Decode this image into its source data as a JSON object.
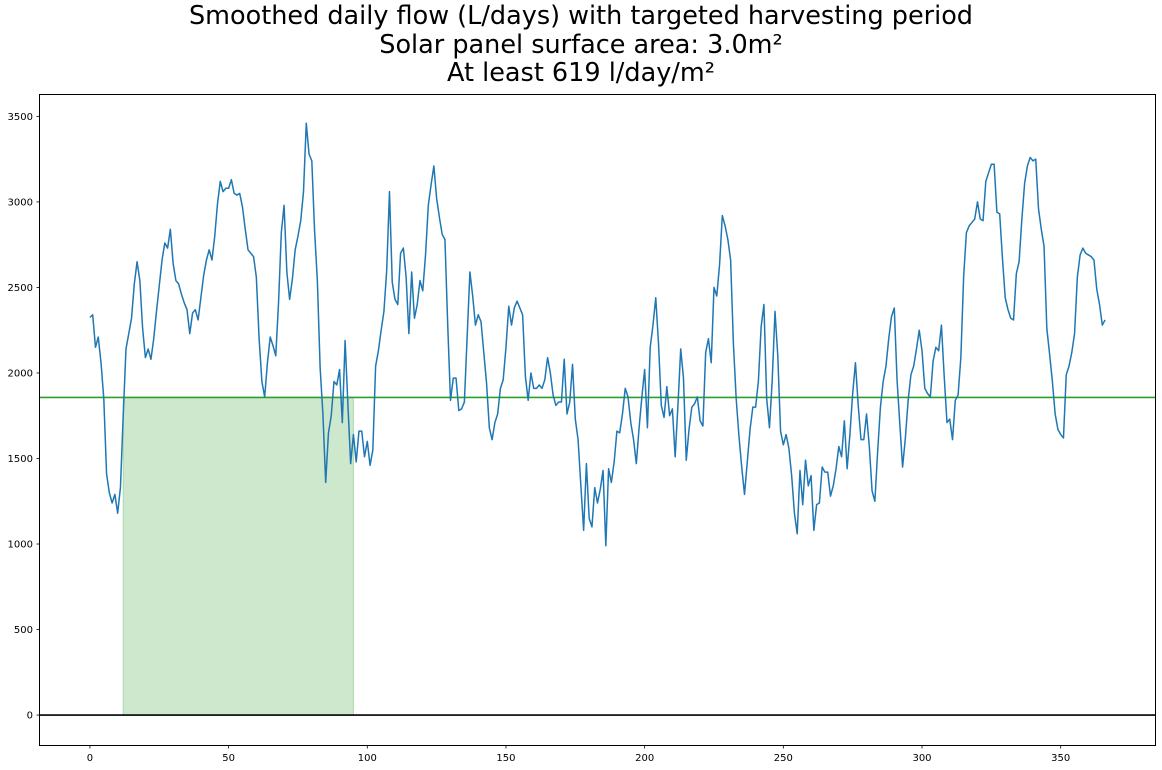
{
  "chart_data": {
    "type": "line",
    "title": [
      "Smoothed daily flow (L/days) with targeted harvesting period",
      "Solar panel surface area: 3.0m²",
      "At least 619 l/day/m²"
    ],
    "xlabel": "",
    "ylabel": "",
    "xlim": [
      -18,
      384
    ],
    "ylim": [
      -175,
      3625
    ],
    "xticks": [
      0,
      50,
      100,
      150,
      200,
      250,
      300,
      350
    ],
    "yticks": [
      0,
      500,
      1000,
      1500,
      2000,
      2500,
      3000,
      3500
    ],
    "grid": false,
    "threshold": 1857,
    "zero_line": 0,
    "harvest_period": [
      12,
      95
    ],
    "colors": {
      "line": "#1f77b4",
      "threshold": "#2ca02c",
      "zero": "#000000",
      "fill": "#2ca02c"
    },
    "series": [
      {
        "x_start": 0,
        "values": [
          2325,
          2340,
          2150,
          2210,
          2060,
          1850,
          1410,
          1300,
          1240,
          1290,
          1180,
          1330,
          1750,
          2140,
          2230,
          2320,
          2520,
          2650,
          2540,
          2260,
          2090,
          2140,
          2080,
          2200,
          2360,
          2510,
          2660,
          2760,
          2730,
          2840,
          2640,
          2540,
          2520,
          2460,
          2410,
          2370,
          2230,
          2350,
          2370,
          2310,
          2440,
          2570,
          2660,
          2720,
          2660,
          2800,
          2990,
          3120,
          3060,
          3080,
          3080,
          3130,
          3050,
          3040,
          3050,
          2970,
          2840,
          2720,
          2700,
          2680,
          2560,
          2200,
          1950,
          1860,
          2060,
          2210,
          2160,
          2100,
          2410,
          2820,
          2980,
          2590,
          2430,
          2550,
          2720,
          2800,
          2890,
          3060,
          3460,
          3280,
          3240,
          2830,
          2540,
          2030,
          1760,
          1360,
          1650,
          1750,
          1950,
          1930,
          2020,
          1710,
          2190,
          1820,
          1470,
          1640,
          1480,
          1660,
          1660,
          1510,
          1600,
          1460,
          1550,
          2040,
          2130,
          2250,
          2360,
          2600,
          3060,
          2530,
          2430,
          2400,
          2700,
          2730,
          2560,
          2230,
          2590,
          2320,
          2400,
          2540,
          2480,
          2690,
          2980,
          3100,
          3210,
          3020,
          2910,
          2810,
          2780,
          2280,
          1840,
          1970,
          1970,
          1780,
          1790,
          1830,
          2210,
          2590,
          2450,
          2280,
          2340,
          2300,
          2120,
          1940,
          1680,
          1610,
          1710,
          1760,
          1910,
          1960,
          2150,
          2390,
          2280,
          2380,
          2420,
          2380,
          2340,
          1980,
          1840,
          2000,
          1910,
          1910,
          1930,
          1910,
          1960,
          2090,
          2000,
          1870,
          1810,
          1830,
          1830,
          2080,
          1760,
          1830,
          2050,
          1730,
          1610,
          1340,
          1080,
          1470,
          1150,
          1100,
          1330,
          1240,
          1320,
          1430,
          990,
          1440,
          1360,
          1480,
          1660,
          1650,
          1760,
          1910,
          1860,
          1710,
          1610,
          1470,
          1680,
          1860,
          2020,
          1680,
          2150,
          2280,
          2440,
          2170,
          1810,
          1740,
          1920,
          1750,
          1790,
          1510,
          1810,
          2140,
          1970,
          1490,
          1670,
          1800,
          1820,
          1860,
          1720,
          1690,
          2120,
          2200,
          2060,
          2500,
          2450,
          2630,
          2920,
          2860,
          2780,
          2660,
          2170,
          1850,
          1630,
          1450,
          1290,
          1480,
          1670,
          1800,
          1800,
          1950,
          2270,
          2400,
          1850,
          1680,
          1960,
          2360,
          2100,
          1660,
          1580,
          1640,
          1560,
          1400,
          1180,
          1060,
          1430,
          1230,
          1490,
          1340,
          1400,
          1080,
          1230,
          1240,
          1450,
          1420,
          1420,
          1280,
          1340,
          1440,
          1570,
          1510,
          1720,
          1440,
          1640,
          1880,
          2060,
          1810,
          1610,
          1610,
          1760,
          1570,
          1310,
          1250,
          1540,
          1800,
          1950,
          2040,
          2200,
          2330,
          2380,
          1960,
          1700,
          1450,
          1620,
          1840,
          1990,
          2040,
          2140,
          2250,
          2130,
          1910,
          1880,
          1860,
          2070,
          2150,
          2130,
          2280,
          1980,
          1710,
          1730,
          1610,
          1840,
          1870,
          2090,
          2560,
          2820,
          2860,
          2880,
          2900,
          3000,
          2900,
          2890,
          3120,
          3170,
          3220,
          3220,
          2940,
          2930,
          2670,
          2440,
          2370,
          2320,
          2310,
          2580,
          2650,
          2900,
          3110,
          3210,
          3260,
          3240,
          3250,
          2960,
          2840,
          2740,
          2260,
          2110,
          1950,
          1760,
          1670,
          1640,
          1620,
          1990,
          2040,
          2120,
          2230,
          2560,
          2690,
          2730,
          2700,
          2690,
          2680,
          2660,
          2490,
          2400,
          2280,
          2310
        ]
      }
    ]
  }
}
